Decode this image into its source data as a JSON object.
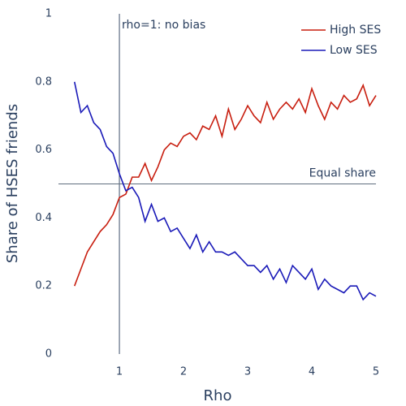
{
  "chart_data": {
    "type": "line",
    "xlabel": "Rho",
    "ylabel": "Share of HSES friends",
    "x": [
      0.3,
      0.4,
      0.5,
      0.6,
      0.7,
      0.8,
      0.9,
      1.0,
      1.1,
      1.2,
      1.3,
      1.4,
      1.5,
      1.6,
      1.7,
      1.8,
      1.9,
      2.0,
      2.1,
      2.2,
      2.3,
      2.4,
      2.5,
      2.6,
      2.7,
      2.8,
      2.9,
      3.0,
      3.1,
      3.2,
      3.3,
      3.4,
      3.5,
      3.6,
      3.7,
      3.8,
      3.9,
      4.0,
      4.1,
      4.2,
      4.3,
      4.4,
      4.5,
      4.6,
      4.7,
      4.8,
      4.9,
      5.0
    ],
    "series": [
      {
        "name": "High SES",
        "color": "#c81e0f",
        "values": [
          0.2,
          0.25,
          0.3,
          0.33,
          0.36,
          0.38,
          0.41,
          0.46,
          0.47,
          0.52,
          0.52,
          0.56,
          0.51,
          0.55,
          0.6,
          0.62,
          0.61,
          0.64,
          0.65,
          0.63,
          0.67,
          0.66,
          0.7,
          0.64,
          0.72,
          0.66,
          0.69,
          0.73,
          0.7,
          0.68,
          0.74,
          0.69,
          0.72,
          0.74,
          0.72,
          0.75,
          0.71,
          0.78,
          0.73,
          0.69,
          0.74,
          0.72,
          0.76,
          0.74,
          0.75,
          0.79,
          0.73,
          0.76
        ]
      },
      {
        "name": "Low SES",
        "color": "#1a1ab8",
        "values": [
          0.8,
          0.71,
          0.73,
          0.68,
          0.66,
          0.61,
          0.59,
          0.53,
          0.48,
          0.49,
          0.46,
          0.39,
          0.44,
          0.39,
          0.4,
          0.36,
          0.37,
          0.34,
          0.31,
          0.35,
          0.3,
          0.33,
          0.3,
          0.3,
          0.29,
          0.3,
          0.28,
          0.26,
          0.26,
          0.24,
          0.26,
          0.22,
          0.25,
          0.21,
          0.26,
          0.24,
          0.22,
          0.25,
          0.19,
          0.22,
          0.2,
          0.19,
          0.18,
          0.2,
          0.2,
          0.16,
          0.18,
          0.17
        ]
      }
    ],
    "vline": {
      "x": 1,
      "label": "rho=1: no bias"
    },
    "hline": {
      "y": 0.5,
      "label": "Equal share"
    },
    "xlim": [
      0.05,
      5
    ],
    "xticks": [
      1,
      2,
      3,
      4,
      5
    ],
    "ylim": [
      0,
      1
    ],
    "yticks": [
      0,
      0.2,
      0.4,
      0.6,
      0.8,
      1
    ],
    "legend": "top-right",
    "grid": false
  }
}
